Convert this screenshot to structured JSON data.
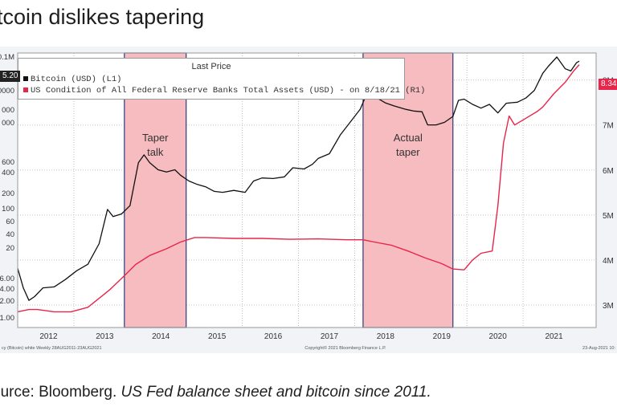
{
  "title": "itcoin dislikes tapering",
  "source": {
    "prefix": "ource: Bloomberg.",
    "italic": "US Fed balance sheet and bitcoin since 2011."
  },
  "legend": {
    "header": "Last Price",
    "btc_label": "Bitcoin (USD)  (L1)",
    "fed_label": "US Condition of All Federal Reserve Banks Total Assets (USD) -  on 8/18/21  (R1)"
  },
  "tags": {
    "btc": "5.20",
    "fed": "8.34"
  },
  "footer": {
    "left": "cy (Bitcoin) white  Weekly 28AUG2011-23AUG2021",
    "center": "Copyright© 2021 Bloomberg Finance L.P.",
    "right": "23-Aug-2021 10:"
  },
  "colors": {
    "btc": "#111111",
    "fed": "#e8254a",
    "shade": "#f7bcc0",
    "bg": "#f1f3f6"
  },
  "chart_data": {
    "type": "line",
    "title": "Last Price",
    "x_labels": [
      "2012",
      "2013",
      "2014",
      "2015",
      "2016",
      "2017",
      "2018",
      "2019",
      "2020",
      "2021"
    ],
    "left_axis_labels": [
      "0.1M",
      "0000",
      "0000",
      "000",
      "000",
      "600",
      "400",
      "200",
      "100",
      "60",
      "40",
      "20",
      "6.00",
      "4.00",
      "2.00",
      "1.00"
    ],
    "right_axis_labels": [
      "8M",
      "7M",
      "6M",
      "5M",
      "4M",
      "3M"
    ],
    "right_ylim": [
      2.5,
      8.6
    ],
    "shaded_regions": [
      {
        "label": "Taper\ntalk",
        "label_lines": [
          "Taper",
          "talk"
        ],
        "start": 2013.55,
        "end": 2014.65
      },
      {
        "label": "Actual\ntaper",
        "label_lines": [
          "Actual",
          "taper"
        ],
        "start": 2017.8,
        "end": 2019.4
      }
    ],
    "series": [
      {
        "name": "Bitcoin (USD)",
        "axis": "left (log)",
        "points": [
          [
            2011.65,
            11
          ],
          [
            2011.75,
            5
          ],
          [
            2011.85,
            3
          ],
          [
            2011.95,
            3.5
          ],
          [
            2012.1,
            5
          ],
          [
            2012.3,
            5.2
          ],
          [
            2012.5,
            7
          ],
          [
            2012.7,
            10
          ],
          [
            2012.9,
            13
          ],
          [
            2013.1,
            30
          ],
          [
            2013.25,
            120
          ],
          [
            2013.35,
            90
          ],
          [
            2013.5,
            100
          ],
          [
            2013.65,
            140
          ],
          [
            2013.8,
            800
          ],
          [
            2013.9,
            1100
          ],
          [
            2014.0,
            800
          ],
          [
            2014.15,
            600
          ],
          [
            2014.3,
            550
          ],
          [
            2014.45,
            600
          ],
          [
            2014.55,
            480
          ],
          [
            2014.7,
            380
          ],
          [
            2014.85,
            330
          ],
          [
            2015.0,
            300
          ],
          [
            2015.15,
            250
          ],
          [
            2015.3,
            240
          ],
          [
            2015.5,
            260
          ],
          [
            2015.7,
            240
          ],
          [
            2015.85,
            380
          ],
          [
            2016.0,
            430
          ],
          [
            2016.2,
            420
          ],
          [
            2016.4,
            450
          ],
          [
            2016.55,
            650
          ],
          [
            2016.75,
            620
          ],
          [
            2016.9,
            750
          ],
          [
            2017.0,
            950
          ],
          [
            2017.2,
            1150
          ],
          [
            2017.4,
            2500
          ],
          [
            2017.6,
            4500
          ],
          [
            2017.75,
            7000
          ],
          [
            2017.85,
            12000
          ],
          [
            2017.95,
            17000
          ],
          [
            2018.05,
            11000
          ],
          [
            2018.2,
            9000
          ],
          [
            2018.35,
            8000
          ],
          [
            2018.55,
            7000
          ],
          [
            2018.7,
            6500
          ],
          [
            2018.85,
            6300
          ],
          [
            2018.95,
            3700
          ],
          [
            2019.1,
            3700
          ],
          [
            2019.25,
            4100
          ],
          [
            2019.4,
            5200
          ],
          [
            2019.5,
            10000
          ],
          [
            2019.6,
            10500
          ],
          [
            2019.75,
            8500
          ],
          [
            2019.9,
            7300
          ],
          [
            2020.05,
            8500
          ],
          [
            2020.2,
            6000
          ],
          [
            2020.35,
            8900
          ],
          [
            2020.55,
            9300
          ],
          [
            2020.7,
            11000
          ],
          [
            2020.85,
            15000
          ],
          [
            2021.0,
            30000
          ],
          [
            2021.1,
            40000
          ],
          [
            2021.25,
            58000
          ],
          [
            2021.4,
            36000
          ],
          [
            2021.5,
            33000
          ],
          [
            2021.6,
            46000
          ],
          [
            2021.65,
            49000
          ]
        ]
      },
      {
        "name": "US Fed Total Assets (USD)",
        "axis": "right (millions, trillions)",
        "points": [
          [
            2011.65,
            2.85
          ],
          [
            2011.85,
            2.9
          ],
          [
            2012.0,
            2.9
          ],
          [
            2012.3,
            2.85
          ],
          [
            2012.6,
            2.85
          ],
          [
            2012.9,
            2.95
          ],
          [
            2013.1,
            3.15
          ],
          [
            2013.3,
            3.35
          ],
          [
            2013.55,
            3.65
          ],
          [
            2013.75,
            3.9
          ],
          [
            2014.0,
            4.1
          ],
          [
            2014.3,
            4.25
          ],
          [
            2014.55,
            4.4
          ],
          [
            2014.8,
            4.5
          ],
          [
            2015.0,
            4.5
          ],
          [
            2015.5,
            4.48
          ],
          [
            2016.0,
            4.48
          ],
          [
            2016.5,
            4.46
          ],
          [
            2017.0,
            4.47
          ],
          [
            2017.5,
            4.45
          ],
          [
            2017.8,
            4.45
          ],
          [
            2018.0,
            4.4
          ],
          [
            2018.3,
            4.33
          ],
          [
            2018.6,
            4.2
          ],
          [
            2018.9,
            4.05
          ],
          [
            2019.2,
            3.92
          ],
          [
            2019.4,
            3.8
          ],
          [
            2019.6,
            3.78
          ],
          [
            2019.75,
            4.0
          ],
          [
            2019.9,
            4.15
          ],
          [
            2020.1,
            4.2
          ],
          [
            2020.2,
            5.2
          ],
          [
            2020.3,
            6.6
          ],
          [
            2020.4,
            7.2
          ],
          [
            2020.5,
            7.0
          ],
          [
            2020.7,
            7.15
          ],
          [
            2020.9,
            7.3
          ],
          [
            2021.0,
            7.4
          ],
          [
            2021.2,
            7.7
          ],
          [
            2021.4,
            7.95
          ],
          [
            2021.55,
            8.2
          ],
          [
            2021.65,
            8.34
          ]
        ]
      }
    ]
  }
}
